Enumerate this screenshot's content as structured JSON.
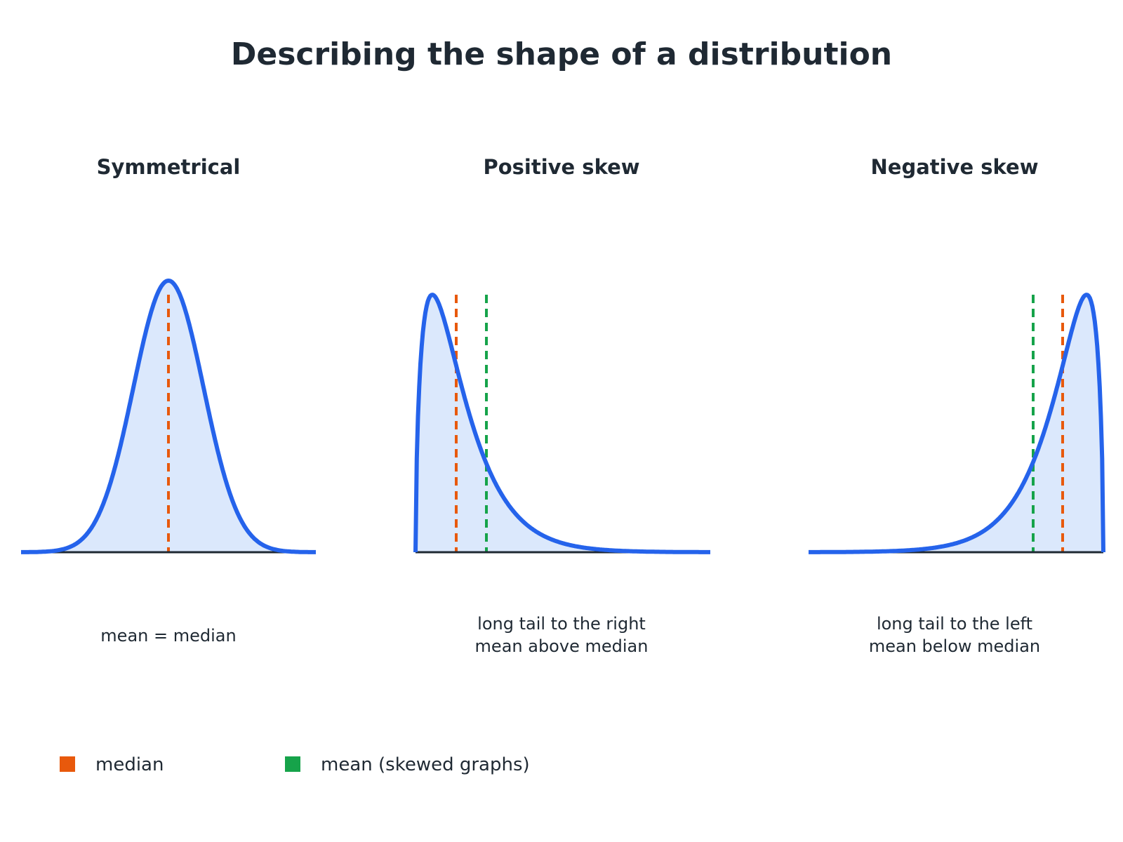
{
  "title": "Describing the shape of a distribution",
  "colors": {
    "curve": "#2563eb",
    "fill": "#dbe8fc",
    "baseline": "#1f2933",
    "median": "#e8590c",
    "mean": "#16a34a",
    "text": "#1f2933"
  },
  "panels": [
    {
      "title": "Symmetrical",
      "shape": "symmetric",
      "caption_lines": [
        "mean = median"
      ],
      "show_mean_line": false
    },
    {
      "title": "Positive skew",
      "shape": "right-skewed",
      "caption_lines": [
        "long tail to the right",
        "mean above median"
      ],
      "show_mean_line": true
    },
    {
      "title": "Negative skew",
      "shape": "left-skewed",
      "caption_lines": [
        "long tail to the left",
        "mean below median"
      ],
      "show_mean_line": true
    }
  ],
  "legend": [
    {
      "label": "median",
      "color": "#e8590c"
    },
    {
      "label": "mean (skewed graphs)",
      "color": "#16a34a"
    }
  ]
}
